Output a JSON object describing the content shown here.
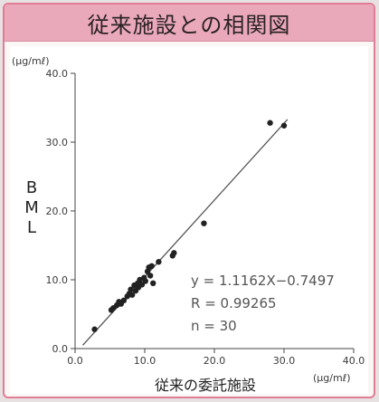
{
  "header": {
    "title": "従来施設との相関図"
  },
  "chart_data": {
    "type": "scatter",
    "title": "従来施設との相関図",
    "xlabel": "従来の委託施設",
    "ylabel": "BML",
    "x_unit": "(μg/mℓ)",
    "y_unit": "(μg/mℓ)",
    "xlim": [
      0,
      40
    ],
    "ylim": [
      0,
      40
    ],
    "xticks": [
      "0.0",
      "10.0",
      "20.0",
      "30.0",
      "40.0"
    ],
    "yticks": [
      "0.0",
      "10.0",
      "20.0",
      "30.0",
      "40.0"
    ],
    "grid": false,
    "series": [
      {
        "points": [
          [
            2.8,
            2.8
          ],
          [
            5.2,
            5.6
          ],
          [
            5.5,
            5.9
          ],
          [
            6.0,
            6.3
          ],
          [
            6.3,
            6.8
          ],
          [
            6.6,
            6.5
          ],
          [
            7.0,
            7.0
          ],
          [
            7.5,
            7.6
          ],
          [
            7.8,
            8.0
          ],
          [
            8.0,
            8.6
          ],
          [
            8.2,
            7.8
          ],
          [
            8.5,
            9.2
          ],
          [
            8.7,
            8.4
          ],
          [
            9.0,
            9.5
          ],
          [
            9.1,
            8.9
          ],
          [
            9.3,
            10.0
          ],
          [
            9.6,
            9.3
          ],
          [
            9.9,
            10.3
          ],
          [
            10.1,
            9.8
          ],
          [
            10.4,
            11.2
          ],
          [
            10.6,
            11.8
          ],
          [
            10.8,
            10.6
          ],
          [
            11.0,
            12.0
          ],
          [
            11.2,
            9.5
          ],
          [
            12.0,
            12.6
          ],
          [
            14.0,
            13.5
          ],
          [
            14.2,
            13.9
          ],
          [
            18.5,
            18.2
          ],
          [
            28.0,
            32.8
          ],
          [
            30.0,
            32.4
          ]
        ]
      }
    ],
    "regression": {
      "slope": 1.1162,
      "intercept": -0.7497,
      "x_range": [
        1.1,
        30.5
      ]
    },
    "annotations": [
      "y = 1.1162X−0.7497",
      "R = 0.99265",
      "n = 30"
    ]
  },
  "colors": {
    "frame": "#e27c95",
    "title_bg": "#e9a9bb",
    "point": "#222222",
    "line": "#555555"
  }
}
